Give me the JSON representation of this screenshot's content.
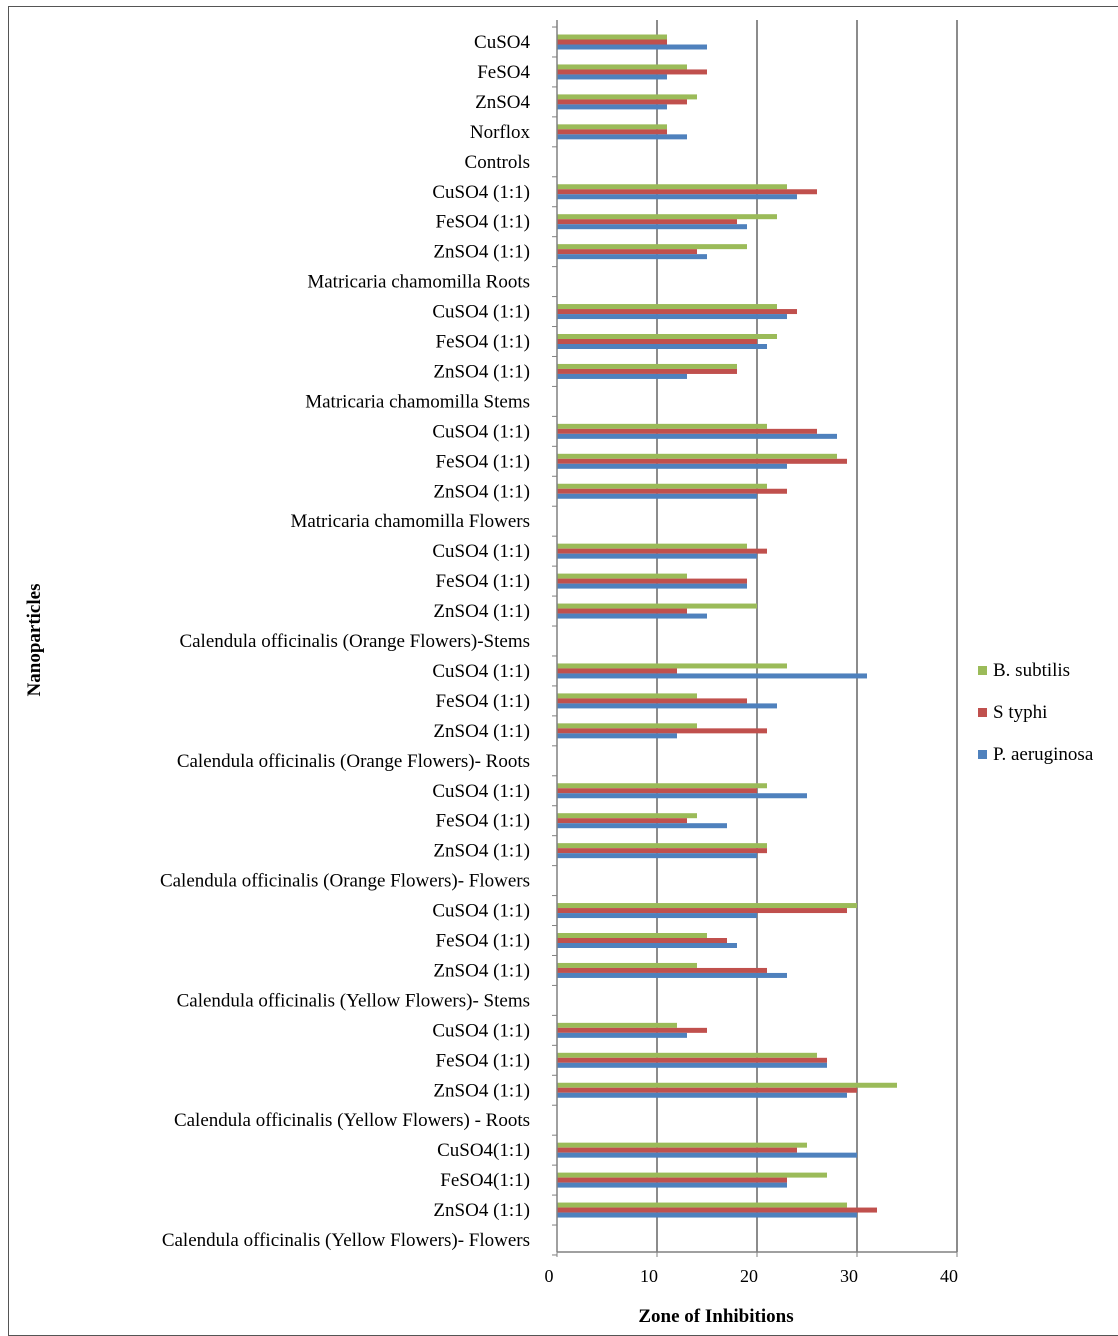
{
  "chart_data": {
    "type": "bar",
    "orientation": "horizontal",
    "xlabel": "Zone of Inhibitions",
    "ylabel": "Nanoparticles",
    "xlim": [
      0,
      40
    ],
    "xticks": [
      0,
      10,
      20,
      30,
      40
    ],
    "grid": true,
    "legend_position": "right",
    "categories": [
      "CuSO4",
      "FeSO4",
      "ZnSO4",
      "Norflox",
      "Controls",
      "CuSO4 (1:1)",
      "FeSO4 (1:1)",
      "ZnSO4 (1:1)",
      "Matricaria chamomilla  Roots",
      "CuSO4 (1:1)",
      "FeSO4 (1:1)",
      "ZnSO4 (1:1)",
      "Matricaria chamomilla  Stems",
      "CuSO4 (1:1)",
      "FeSO4 (1:1)",
      "ZnSO4 (1:1)",
      "Matricaria chamomilla  Flowers",
      "CuSO4 (1:1)",
      "FeSO4 (1:1)",
      "ZnSO4 (1:1)",
      "Calendula officinalis (Orange Flowers)-Stems",
      "CuSO4 (1:1)",
      "FeSO4 (1:1)",
      "ZnSO4 (1:1)",
      "Calendula officinalis (Orange Flowers)- Roots",
      "CuSO4 (1:1)",
      "FeSO4 (1:1)",
      "ZnSO4 (1:1)",
      "Calendula officinalis (Orange Flowers)- Flowers",
      "CuSO4 (1:1)",
      "FeSO4 (1:1)",
      "ZnSO4 (1:1)",
      "Calendula officinalis (Yellow Flowers)- Stems",
      "CuSO4 (1:1)",
      "FeSO4 (1:1)",
      "ZnSO4 (1:1)",
      "Calendula officinalis (Yellow Flowers) - Roots",
      "CuSO4(1:1)",
      "FeSO4(1:1)",
      "ZnSO4 (1:1)",
      "Calendula officinalis (Yellow Flowers)- Flowers"
    ],
    "series": [
      {
        "name": "B. subtilis",
        "color": "#9BBB59",
        "values": [
          11,
          13,
          14,
          11,
          null,
          23,
          22,
          19,
          null,
          22,
          22,
          18,
          null,
          21,
          28,
          21,
          null,
          19,
          13,
          20,
          null,
          23,
          14,
          14,
          null,
          21,
          14,
          21,
          null,
          30,
          15,
          14,
          null,
          12,
          26,
          34,
          null,
          25,
          27,
          29,
          null
        ]
      },
      {
        "name": "S typhi",
        "color": "#C0504D",
        "values": [
          11,
          15,
          13,
          11,
          null,
          26,
          18,
          14,
          null,
          24,
          20,
          18,
          null,
          26,
          29,
          23,
          null,
          21,
          19,
          13,
          null,
          12,
          19,
          21,
          null,
          20,
          13,
          21,
          null,
          29,
          17,
          21,
          null,
          15,
          27,
          30,
          null,
          24,
          23,
          32,
          null
        ]
      },
      {
        "name": "P. aeruginosa",
        "color": "#4F81BD",
        "values": [
          15,
          11,
          11,
          13,
          null,
          24,
          19,
          15,
          null,
          23,
          21,
          13,
          null,
          28,
          23,
          20,
          null,
          20,
          19,
          15,
          null,
          31,
          22,
          12,
          null,
          25,
          17,
          20,
          null,
          20,
          18,
          23,
          null,
          13,
          27,
          29,
          null,
          30,
          23,
          30,
          null
        ]
      }
    ]
  }
}
